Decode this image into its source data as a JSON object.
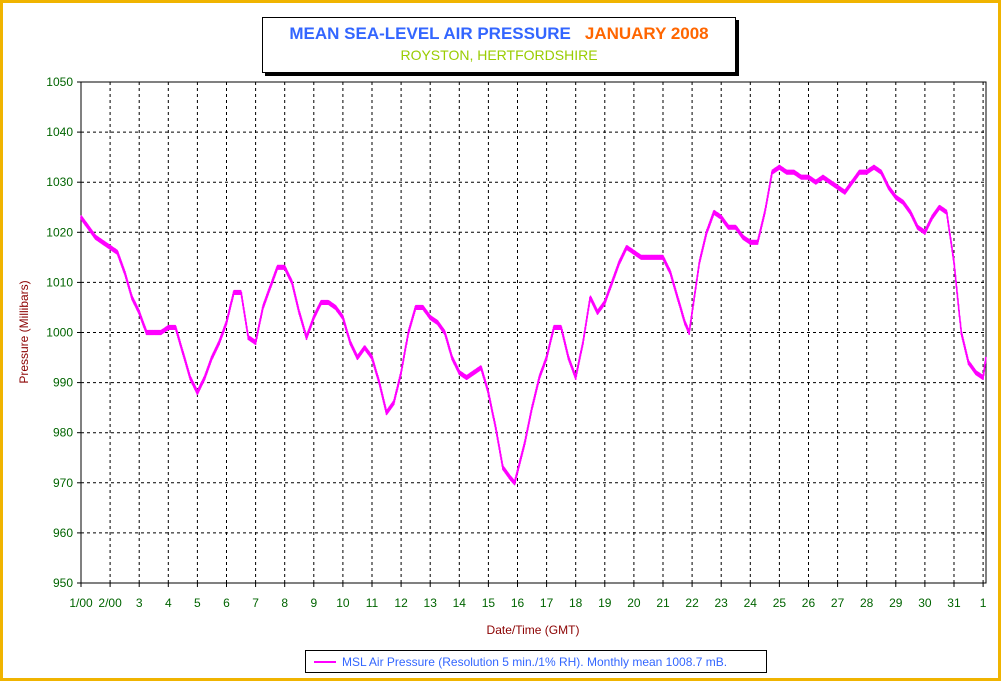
{
  "chart_data": {
    "type": "line",
    "title": "MEAN SEA-LEVEL AIR PRESSURE",
    "title_period": "JANUARY 2008",
    "subtitle": "ROYSTON, HERTFORDSHIRE",
    "xlabel": "Date/Time (GMT)",
    "ylabel": "Pressure (Millibars)",
    "ylim": [
      950,
      1050
    ],
    "yticks": [
      950,
      960,
      970,
      980,
      990,
      1000,
      1010,
      1020,
      1030,
      1040,
      1050
    ],
    "xlim": [
      1,
      32.1
    ],
    "xticks": [
      {
        "day": 1,
        "label": "1/00"
      },
      {
        "day": 2,
        "label": "2/00"
      },
      {
        "day": 3,
        "label": "3"
      },
      {
        "day": 4,
        "label": "4"
      },
      {
        "day": 5,
        "label": "5"
      },
      {
        "day": 6,
        "label": "6"
      },
      {
        "day": 7,
        "label": "7"
      },
      {
        "day": 8,
        "label": "8"
      },
      {
        "day": 9,
        "label": "9"
      },
      {
        "day": 10,
        "label": "10"
      },
      {
        "day": 11,
        "label": "11"
      },
      {
        "day": 12,
        "label": "12"
      },
      {
        "day": 13,
        "label": "13"
      },
      {
        "day": 14,
        "label": "14"
      },
      {
        "day": 15,
        "label": "15"
      },
      {
        "day": 16,
        "label": "16"
      },
      {
        "day": 17,
        "label": "17"
      },
      {
        "day": 18,
        "label": "18"
      },
      {
        "day": 19,
        "label": "19"
      },
      {
        "day": 20,
        "label": "20"
      },
      {
        "day": 21,
        "label": "21"
      },
      {
        "day": 22,
        "label": "22"
      },
      {
        "day": 23,
        "label": "23"
      },
      {
        "day": 24,
        "label": "24"
      },
      {
        "day": 25,
        "label": "25"
      },
      {
        "day": 26,
        "label": "26"
      },
      {
        "day": 27,
        "label": "27"
      },
      {
        "day": 28,
        "label": "28"
      },
      {
        "day": 29,
        "label": "29"
      },
      {
        "day": 30,
        "label": "30"
      },
      {
        "day": 31,
        "label": "31"
      },
      {
        "day": 32,
        "label": "1"
      }
    ],
    "grid": true,
    "legend_position": "bottom",
    "series": [
      {
        "name": "MSL Air Pressure (Resolution 5 min./1% RH). Monthly mean 1008.7 mB.",
        "color": "#ff00ff",
        "x": [
          1.0,
          1.25,
          1.5,
          1.75,
          2.0,
          2.25,
          2.5,
          2.75,
          3.0,
          3.25,
          3.5,
          3.75,
          4.0,
          4.25,
          4.5,
          4.75,
          5.0,
          5.25,
          5.5,
          5.75,
          6.0,
          6.25,
          6.5,
          6.75,
          7.0,
          7.25,
          7.5,
          7.75,
          8.0,
          8.25,
          8.5,
          8.75,
          9.0,
          9.25,
          9.5,
          9.75,
          10.0,
          10.25,
          10.5,
          10.75,
          11.0,
          11.25,
          11.5,
          11.75,
          12.0,
          12.25,
          12.5,
          12.75,
          13.0,
          13.25,
          13.5,
          13.75,
          14.0,
          14.25,
          14.5,
          14.75,
          15.0,
          15.25,
          15.5,
          15.75,
          15.9,
          16.25,
          16.5,
          16.75,
          17.0,
          17.25,
          17.5,
          17.75,
          18.0,
          18.25,
          18.5,
          18.75,
          19.0,
          19.25,
          19.5,
          19.75,
          20.0,
          20.25,
          20.5,
          20.75,
          21.0,
          21.25,
          21.5,
          21.75,
          21.9,
          22.25,
          22.5,
          22.75,
          23.0,
          23.25,
          23.5,
          23.75,
          24.0,
          24.25,
          24.5,
          24.75,
          25.0,
          25.25,
          25.5,
          25.75,
          26.0,
          26.25,
          26.5,
          26.75,
          27.0,
          27.25,
          27.5,
          27.75,
          28.0,
          28.25,
          28.5,
          28.75,
          29.0,
          29.25,
          29.5,
          29.75,
          30.0,
          30.25,
          30.5,
          30.75,
          31.0,
          31.25,
          31.5,
          31.75,
          32.0,
          32.1
        ],
        "y": [
          1023,
          1021,
          1019,
          1018,
          1017,
          1016,
          1012,
          1007,
          1004,
          1000,
          1000,
          1000,
          1001,
          1001,
          996,
          991,
          988,
          991,
          995,
          998,
          1002,
          1008,
          1008,
          999,
          998,
          1005,
          1009,
          1013,
          1013,
          1010,
          1004,
          999,
          1003,
          1006,
          1006,
          1005,
          1003,
          998,
          995,
          997,
          995,
          990,
          984,
          986,
          992,
          1000,
          1005,
          1005,
          1003,
          1002,
          1000,
          995,
          992,
          991,
          992,
          993,
          988,
          981,
          973,
          971,
          970,
          978,
          985,
          991,
          995,
          1001,
          1001,
          995,
          991,
          998,
          1007,
          1004,
          1006,
          1010,
          1014,
          1017,
          1016,
          1015,
          1015,
          1015,
          1015,
          1012,
          1007,
          1002,
          1000,
          1014,
          1020,
          1024,
          1023,
          1021,
          1021,
          1019,
          1018,
          1018,
          1024,
          1032,
          1033,
          1032,
          1032,
          1031,
          1031,
          1030,
          1031,
          1030,
          1029,
          1028,
          1030,
          1032,
          1032,
          1033,
          1032,
          1029,
          1027,
          1026,
          1024,
          1021,
          1020,
          1023,
          1025,
          1024,
          1014,
          1000,
          994,
          992,
          991,
          995
        ]
      }
    ]
  }
}
